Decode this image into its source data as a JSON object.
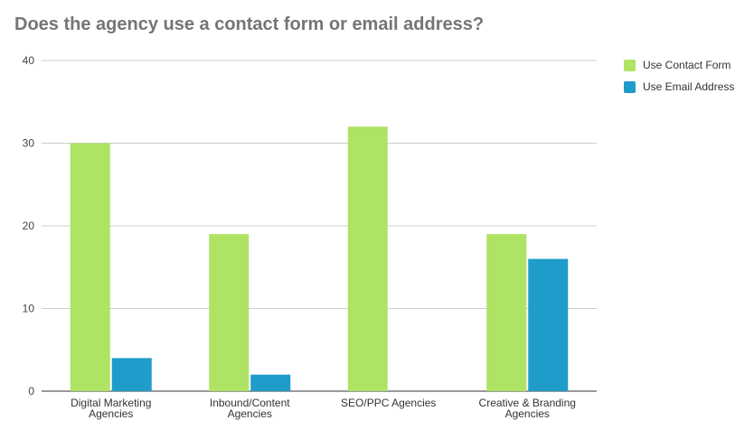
{
  "title": "Does the agency use a contact form or email address?",
  "chart_data": {
    "type": "bar",
    "categories": [
      [
        "Digital Marketing",
        "Agencies"
      ],
      [
        "Inbound/Content",
        "Agencies"
      ],
      [
        "SEO/PPC Agencies"
      ],
      [
        "Creative & Branding",
        "Agencies"
      ]
    ],
    "series": [
      {
        "name": "Use Contact Form",
        "color": "#aee364",
        "values": [
          30,
          19,
          32,
          19
        ]
      },
      {
        "name": "Use Email Address",
        "color": "#1f9cc9",
        "values": [
          4,
          2,
          0,
          16
        ]
      }
    ],
    "ylim": [
      0,
      40
    ],
    "yticks": [
      0,
      10,
      20,
      30,
      40
    ],
    "grid": true,
    "legend_position": "right"
  }
}
